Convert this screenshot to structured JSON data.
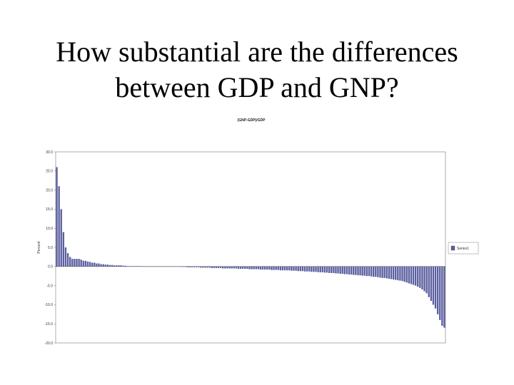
{
  "slide": {
    "title_line1": "How substantial are the differences",
    "title_line2": "between GDP and GNP?"
  },
  "colors": {
    "bar": "#5a5e9e",
    "frame": "#9a9a9a",
    "text": "#222222",
    "background": "#ffffff"
  },
  "chart_data": {
    "type": "bar",
    "title": "(GNP-GDP)/GDP",
    "ylabel": "Percent",
    "ylim": [
      -20,
      30
    ],
    "yticks": [
      -20,
      -15,
      -10,
      -5,
      0,
      5,
      10,
      15,
      20,
      25,
      30
    ],
    "ytick_labels": [
      "-20.0",
      "-15.0",
      "-10.0",
      "-5.0",
      "0.0",
      "5.0",
      "10.0",
      "15.0",
      "20.0",
      "25.0",
      "30.0"
    ],
    "grid": false,
    "legend_position": "right",
    "series": [
      {
        "name": "Series1",
        "values": [
          26.0,
          21.0,
          15.0,
          9.0,
          5.0,
          3.5,
          2.5,
          2.0,
          2.0,
          2.0,
          2.0,
          1.8,
          1.5,
          1.5,
          1.3,
          1.2,
          1.0,
          1.0,
          0.8,
          0.8,
          0.6,
          0.6,
          0.5,
          0.5,
          0.4,
          0.4,
          0.3,
          0.3,
          0.3,
          0.3,
          0.2,
          0.2,
          0.1,
          0.1,
          0.1,
          0.1,
          0.1,
          0.1,
          0.1,
          0.0,
          0.0,
          0.0,
          0.0,
          0.0,
          0.0,
          0.0,
          0.0,
          0.0,
          0.0,
          0.0,
          0.0,
          0.0,
          0.0,
          0.0,
          0.0,
          0.0,
          -0.1,
          -0.1,
          -0.1,
          -0.2,
          -0.2,
          -0.2,
          -0.2,
          -0.2,
          -0.2,
          -0.3,
          -0.3,
          -0.3,
          -0.3,
          -0.3,
          -0.4,
          -0.4,
          -0.4,
          -0.4,
          -0.4,
          -0.5,
          -0.5,
          -0.5,
          -0.5,
          -0.5,
          -0.5,
          -0.5,
          -0.6,
          -0.6,
          -0.6,
          -0.6,
          -0.6,
          -0.7,
          -0.7,
          -0.7,
          -0.7,
          -0.7,
          -0.8,
          -0.8,
          -0.8,
          -0.8,
          -0.8,
          -0.9,
          -0.9,
          -0.9,
          -0.9,
          -1.0,
          -1.0,
          -1.0,
          -1.0,
          -1.0,
          -1.1,
          -1.1,
          -1.1,
          -1.2,
          -1.2,
          -1.2,
          -1.3,
          -1.3,
          -1.3,
          -1.4,
          -1.4,
          -1.4,
          -1.5,
          -1.5,
          -1.5,
          -1.6,
          -1.6,
          -1.7,
          -1.7,
          -1.7,
          -1.8,
          -1.8,
          -1.9,
          -1.9,
          -2.0,
          -2.0,
          -2.1,
          -2.1,
          -2.2,
          -2.2,
          -2.3,
          -2.3,
          -2.4,
          -2.4,
          -2.5,
          -2.5,
          -2.6,
          -2.7,
          -2.7,
          -2.8,
          -2.9,
          -3.0,
          -3.0,
          -3.1,
          -3.2,
          -3.3,
          -3.4,
          -3.5,
          -3.6,
          -3.7,
          -3.8,
          -4.0,
          -4.2,
          -4.4,
          -4.6,
          -4.8,
          -5.0,
          -5.3,
          -5.6,
          -6.0,
          -6.5,
          -7.0,
          -8.0,
          -9.0,
          -10.0,
          -11.0,
          -12.5,
          -14.0,
          -15.5,
          -16.0
        ]
      }
    ]
  }
}
